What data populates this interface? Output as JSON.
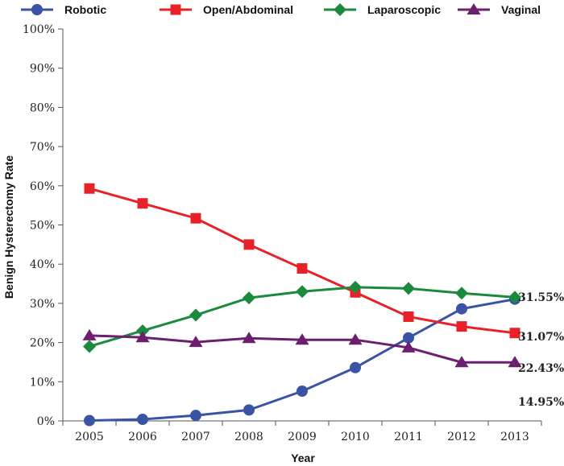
{
  "chart_data": {
    "type": "line",
    "title": "",
    "xlabel": "Year",
    "ylabel": "Benign Hysterectomy Rate",
    "x": [
      "2005",
      "2006",
      "2007",
      "2008",
      "2009",
      "2010",
      "2011",
      "2012",
      "2013"
    ],
    "ylim": [
      0,
      100
    ],
    "yticks": [
      "0%",
      "10%",
      "20%",
      "30%",
      "40%",
      "50%",
      "60%",
      "70%",
      "80%",
      "90%",
      "100%"
    ],
    "grid": "off",
    "legend_position": "top",
    "series": [
      {
        "name": "Robotic",
        "color": "#3a53a4",
        "marker": "circle",
        "values": [
          0.1,
          0.4,
          1.4,
          2.8,
          7.6,
          13.6,
          21.2,
          28.6,
          31.07
        ]
      },
      {
        "name": "Open/Abdominal",
        "color": "#e62228",
        "marker": "square",
        "values": [
          59.3,
          55.5,
          51.7,
          45.0,
          38.9,
          32.8,
          26.6,
          24.1,
          22.43
        ]
      },
      {
        "name": "Laparoscopic",
        "color": "#1a8a3c",
        "marker": "diamond",
        "values": [
          19.0,
          23.0,
          27.0,
          31.4,
          33.0,
          34.1,
          33.8,
          32.6,
          31.55
        ]
      },
      {
        "name": "Vaginal",
        "color": "#6b1f6e",
        "marker": "triangle",
        "values": [
          21.8,
          21.3,
          20.1,
          21.1,
          20.7,
          20.7,
          18.7,
          14.95,
          14.95
        ]
      }
    ],
    "annotations": [
      "31.55%",
      "31.07%",
      "22.43%",
      "14.95%"
    ]
  }
}
